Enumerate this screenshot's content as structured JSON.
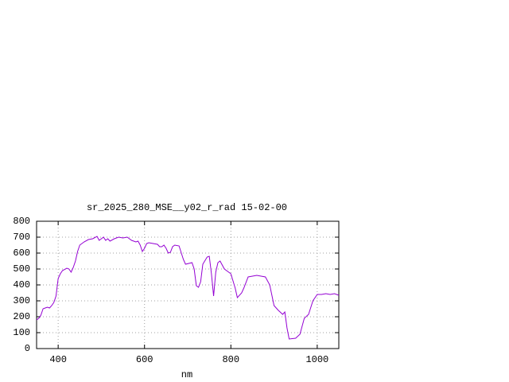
{
  "chart_data": {
    "type": "line",
    "title": "sr_2025_280_MSE__y02_r_rad 15-02-00",
    "x_label": "nm",
    "xlim": [
      350,
      1050
    ],
    "xticks": [
      400,
      600,
      800,
      1000
    ],
    "ylim": [
      0,
      800
    ],
    "yticks": [
      0,
      100,
      200,
      300,
      400,
      500,
      600,
      700,
      800
    ],
    "grid": true,
    "series": [
      {
        "color": "#9400d3",
        "x": [
          350,
          355,
          360,
          365,
          370,
          375,
          380,
          385,
          390,
          395,
          400,
          405,
          410,
          420,
          425,
          430,
          435,
          440,
          445,
          450,
          460,
          470,
          480,
          490,
          495,
          500,
          505,
          510,
          515,
          520,
          530,
          540,
          550,
          560,
          570,
          580,
          585,
          590,
          595,
          600,
          605,
          610,
          620,
          630,
          635,
          640,
          645,
          650,
          655,
          660,
          665,
          670,
          680,
          690,
          695,
          710,
          715,
          720,
          725,
          730,
          735,
          745,
          750,
          755,
          760,
          765,
          770,
          775,
          785,
          795,
          800,
          810,
          815,
          825,
          830,
          840,
          850,
          860,
          870,
          880,
          890,
          900,
          910,
          920,
          925,
          930,
          935,
          950,
          960,
          970,
          980,
          990,
          1000,
          1010,
          1020,
          1030,
          1040,
          1050
        ],
        "values": [
          180,
          190,
          210,
          250,
          255,
          260,
          255,
          270,
          290,
          330,
          440,
          470,
          490,
          505,
          500,
          480,
          510,
          550,
          610,
          650,
          670,
          685,
          690,
          705,
          680,
          690,
          700,
          680,
          690,
          675,
          690,
          700,
          695,
          700,
          680,
          670,
          675,
          650,
          610,
          630,
          660,
          665,
          660,
          655,
          640,
          640,
          650,
          630,
          600,
          605,
          640,
          650,
          645,
          560,
          530,
          540,
          500,
          395,
          385,
          420,
          530,
          575,
          580,
          470,
          330,
          480,
          540,
          550,
          500,
          480,
          470,
          380,
          320,
          350,
          380,
          450,
          455,
          460,
          455,
          450,
          400,
          270,
          240,
          215,
          230,
          130,
          60,
          65,
          90,
          190,
          215,
          300,
          340,
          340,
          345,
          340,
          345,
          335
        ]
      }
    ]
  }
}
